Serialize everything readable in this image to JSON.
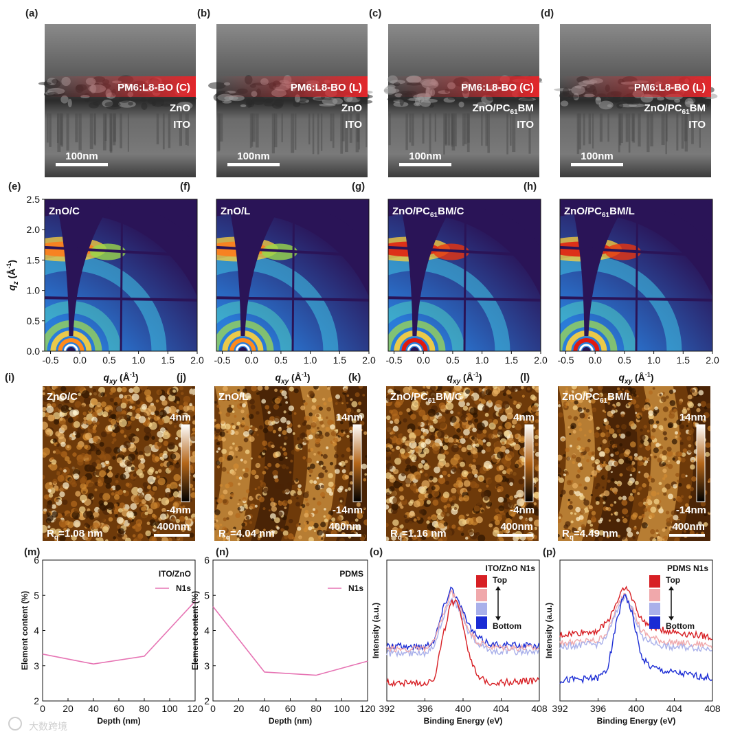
{
  "sem": {
    "panels": [
      {
        "label": "(a)",
        "layer": "PM6:L8-BO (C)",
        "mid": "ZnO",
        "mid_sub": "",
        "bottom": "ITO",
        "scale": "100nm"
      },
      {
        "label": "(b)",
        "layer": "PM6:L8-BO (L)",
        "mid": "ZnO",
        "mid_sub": "",
        "bottom": "ITO",
        "scale": "100nm"
      },
      {
        "label": "(c)",
        "layer": "PM6:L8-BO (C)",
        "mid": "ZnO/PC",
        "mid_sub": "61",
        "mid_tail": "BM",
        "bottom": "ITO",
        "scale": "100nm"
      },
      {
        "label": "(d)",
        "layer": "PM6:L8-BO (L)",
        "mid": "ZnO/PC",
        "mid_sub": "61",
        "mid_tail": "BM",
        "bottom": "ITO",
        "scale": "100nm"
      }
    ],
    "colors": {
      "layer_band": "#e3262b",
      "bg_dark": "#3a3a3a",
      "bg_mid": "#6e6e6e"
    }
  },
  "giwaxs": {
    "panels": [
      {
        "label": "(e)",
        "name": "ZnO/C",
        "name_sub": "",
        "name_tail": "",
        "intensity": 0.62
      },
      {
        "label": "(f)",
        "name": "ZnO/L",
        "name_sub": "",
        "name_tail": "",
        "intensity": 0.62
      },
      {
        "label": "(g)",
        "name": "ZnO/PC",
        "name_sub": "61",
        "name_tail": "BM/C",
        "intensity": 1.0
      },
      {
        "label": "(h)",
        "name": "ZnO/PC",
        "name_sub": "61",
        "name_tail": "BM/L",
        "intensity": 0.95
      }
    ],
    "yaxis": {
      "label_main": "q",
      "label_sub": "z",
      "label_unit": " (Å",
      "label_sup": "-1",
      "label_close": ")",
      "ticks": [
        "0.0",
        "0.5",
        "1.0",
        "1.5",
        "2.0",
        "2.5"
      ]
    },
    "xaxis": {
      "label_main": "q",
      "label_sub": "xy",
      "label_unit": " (Å",
      "label_sup": "-1",
      "label_close": ")",
      "ticks": [
        "-0.5",
        "0.0",
        "0.5",
        "1.0",
        "1.5",
        "2.0"
      ]
    },
    "colors": {
      "background": "#2a1457",
      "low": "#1d6fd6",
      "mid": "#36c2e0",
      "high": "#ffd23a",
      "peak": "#e11a0f"
    }
  },
  "afm": {
    "panels": [
      {
        "label": "(i)",
        "name": "ZnO/C",
        "name_sub": "",
        "name_tail": "",
        "top": "4nm",
        "bottom": "-4nm",
        "rq_main": "R",
        "rq_sub": "q",
        "rq_val": "=1.08 nm",
        "scale": "400nm",
        "pattern": "fine"
      },
      {
        "label": "(j)",
        "name": "ZnO/L",
        "name_sub": "",
        "name_tail": "",
        "top": "14nm",
        "bottom": "-14nm",
        "rq_main": "R",
        "rq_sub": "q",
        "rq_val": "=4.04 nm",
        "scale": "400nm",
        "pattern": "stripe"
      },
      {
        "label": "(k)",
        "name": "ZnO/PC",
        "name_sub": "61",
        "name_tail": "BM/C",
        "top": "4nm",
        "bottom": "-4nm",
        "rq_main": "R",
        "rq_sub": "q",
        "rq_val": "=1.16 nm",
        "scale": "400nm",
        "pattern": "fine"
      },
      {
        "label": "(l)",
        "name": "ZnO/PC",
        "name_sub": "61",
        "name_tail": "BM/L",
        "top": "14nm",
        "bottom": "-14nm",
        "rq_main": "R",
        "rq_sub": "q",
        "rq_val": "=4.49 nm",
        "scale": "400nm",
        "pattern": "stripe"
      }
    ],
    "colors": {
      "dark": "#2b1400",
      "mid": "#a8620f",
      "light": "#f6d890"
    }
  },
  "chart_data": [
    {
      "type": "line",
      "label": "(m)",
      "title": "ITO/ZnO",
      "xlabel": "Depth (nm)",
      "ylabel": "Element content (%)",
      "xlim": [
        0,
        120
      ],
      "ylim": [
        2,
        6
      ],
      "xticks": [
        "0",
        "20",
        "40",
        "60",
        "80",
        "100",
        "120"
      ],
      "yticks": [
        "2",
        "3",
        "4",
        "5",
        "6"
      ],
      "series": [
        {
          "name": "N1s",
          "color": "#e673b3",
          "x": [
            0,
            40,
            80,
            120
          ],
          "y": [
            3.33,
            3.05,
            3.27,
            4.83
          ]
        }
      ]
    },
    {
      "type": "line",
      "label": "(n)",
      "title": "PDMS",
      "xlabel": "Depth (nm)",
      "ylabel": "Element content (%)",
      "xlim": [
        0,
        120
      ],
      "ylim": [
        2,
        6
      ],
      "xticks": [
        "0",
        "20",
        "40",
        "60",
        "80",
        "100",
        "120"
      ],
      "yticks": [
        "2",
        "3",
        "4",
        "5",
        "6"
      ],
      "series": [
        {
          "name": "N1s",
          "color": "#e673b3",
          "x": [
            0,
            40,
            80,
            120
          ],
          "y": [
            4.68,
            2.82,
            2.73,
            3.13
          ]
        }
      ]
    },
    {
      "type": "line",
      "label": "(o)",
      "title": "ITO/ZnO N1s",
      "xlabel": "Binding Energy (eV)",
      "ylabel": "Intensity (a.u.)",
      "xlim": [
        392,
        408
      ],
      "xticks": [
        "392",
        "396",
        "400",
        "404",
        "408"
      ],
      "legend": {
        "top": "Top",
        "bottom": "Bottom"
      },
      "series": [
        {
          "name": "s1",
          "color": "#1a2bd4",
          "x": [
            392,
            396,
            397,
            398,
            398.8,
            399.6,
            400.5,
            401.5,
            403,
            408
          ],
          "y": [
            0.42,
            0.42,
            0.48,
            0.78,
            0.95,
            0.8,
            0.62,
            0.5,
            0.44,
            0.42
          ]
        },
        {
          "name": "s2",
          "color": "#a9b0ea",
          "x": [
            392,
            396,
            397,
            398,
            398.8,
            399.6,
            400.5,
            401.5,
            403,
            408
          ],
          "y": [
            0.36,
            0.36,
            0.44,
            0.7,
            0.86,
            0.74,
            0.56,
            0.44,
            0.38,
            0.37
          ]
        },
        {
          "name": "s3",
          "color": "#f0a8ab",
          "x": [
            392,
            396,
            397,
            398,
            398.8,
            399.6,
            400.5,
            401.5,
            403,
            408
          ],
          "y": [
            0.4,
            0.4,
            0.46,
            0.72,
            0.9,
            0.78,
            0.58,
            0.46,
            0.41,
            0.4
          ]
        },
        {
          "name": "s4",
          "color": "#d71f24",
          "x": [
            392,
            396,
            397,
            398,
            398.8,
            399.6,
            400.5,
            401.5,
            403,
            408
          ],
          "y": [
            0.1,
            0.1,
            0.14,
            0.55,
            0.82,
            0.78,
            0.4,
            0.14,
            0.1,
            0.12
          ]
        }
      ]
    },
    {
      "type": "line",
      "label": "(p)",
      "title": "PDMS N1s",
      "xlabel": "Binding Energy (eV)",
      "ylabel": "Intensity (a.u.)",
      "xlim": [
        392,
        408
      ],
      "xticks": [
        "392",
        "396",
        "400",
        "404",
        "408"
      ],
      "legend": {
        "top": "Top",
        "bottom": "Bottom"
      },
      "series": [
        {
          "name": "s1",
          "color": "#d71f24",
          "x": [
            392,
            396,
            397,
            398,
            398.8,
            399.6,
            400.5,
            401.5,
            403,
            408
          ],
          "y": [
            0.52,
            0.56,
            0.64,
            0.82,
            0.96,
            0.84,
            0.66,
            0.6,
            0.56,
            0.5
          ]
        },
        {
          "name": "s2",
          "color": "#f0a8ab",
          "x": [
            392,
            396,
            397,
            398,
            398.8,
            399.6,
            400.5,
            401.5,
            403,
            408
          ],
          "y": [
            0.45,
            0.47,
            0.55,
            0.76,
            0.9,
            0.76,
            0.56,
            0.5,
            0.46,
            0.43
          ]
        },
        {
          "name": "s3",
          "color": "#a9b0ea",
          "x": [
            392,
            396,
            397,
            398,
            398.8,
            399.6,
            400.5,
            401.5,
            403,
            408
          ],
          "y": [
            0.42,
            0.44,
            0.52,
            0.74,
            0.88,
            0.74,
            0.52,
            0.46,
            0.42,
            0.4
          ]
        },
        {
          "name": "s4",
          "color": "#1a2bd4",
          "x": [
            392,
            396,
            397,
            398,
            398.8,
            399.6,
            400.5,
            401.5,
            403,
            408
          ],
          "y": [
            0.12,
            0.14,
            0.22,
            0.66,
            0.9,
            0.7,
            0.34,
            0.24,
            0.2,
            0.14
          ]
        }
      ]
    }
  ],
  "watermark": {
    "text": "大数跨境"
  }
}
